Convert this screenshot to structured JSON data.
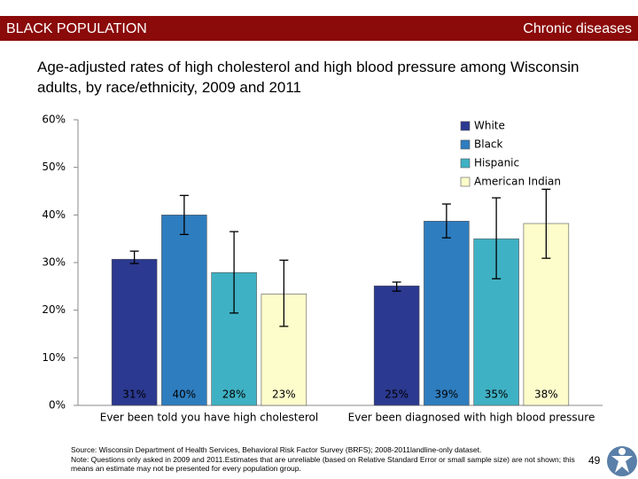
{
  "header": {
    "left": "BLACK POPULATION",
    "right": "Chronic diseases"
  },
  "chart_data": {
    "type": "bar",
    "title": "Age-adjusted rates of high cholesterol and high blood pressure among Wisconsin adults, by race/ethnicity, 2009 and 2011",
    "categories": [
      "Ever been told you have high cholesterol",
      "Ever been diagnosed with high blood pressure"
    ],
    "series": [
      {
        "name": "White",
        "color": "#2b3990",
        "values": [
          30.7,
          25.1
        ],
        "value_labels": [
          "31%",
          "25%"
        ],
        "error_low": [
          29.8,
          24.0
        ],
        "error_high": [
          32.4,
          25.9
        ]
      },
      {
        "name": "Black",
        "color": "#2e7dbf",
        "values": [
          40.0,
          38.7
        ],
        "value_labels": [
          "40%",
          "39%"
        ],
        "error_low": [
          35.9,
          35.2
        ],
        "error_high": [
          44.1,
          42.3
        ]
      },
      {
        "name": "Hispanic",
        "color": "#3fb1c4",
        "values": [
          27.9,
          35.0
        ],
        "value_labels": [
          "28%",
          "35%"
        ],
        "error_low": [
          19.4,
          26.6
        ],
        "error_high": [
          36.5,
          43.6
        ]
      },
      {
        "name": "American Indian",
        "color": "#fdfccb",
        "values": [
          23.4,
          38.2
        ],
        "value_labels": [
          "23%",
          "38%"
        ],
        "error_low": [
          16.6,
          30.9
        ],
        "error_high": [
          30.5,
          45.4
        ]
      }
    ],
    "ylim": [
      0,
      60
    ],
    "yticks": [
      {
        "value": 0,
        "label": "0%"
      },
      {
        "value": 10,
        "label": "10%"
      },
      {
        "value": 20,
        "label": "20%"
      },
      {
        "value": 30,
        "label": "30%"
      },
      {
        "value": 40,
        "label": "40%"
      },
      {
        "value": 50,
        "label": "50%"
      },
      {
        "value": 60,
        "label": "60%"
      }
    ],
    "grid": false,
    "legend": "top-right"
  },
  "footer": {
    "source": "Source: Wisconsin Department of Health Services, Behavioral Risk Factor Survey (BRFS); 2008-2011landline-only dataset.",
    "note": "Note: Questions only asked in 2009 and 2011.Estimates that are unreliable (based on Relative Standard Error or small sample size) are not shown; this means an estimate may not be presented for every population group.",
    "page": "49"
  }
}
